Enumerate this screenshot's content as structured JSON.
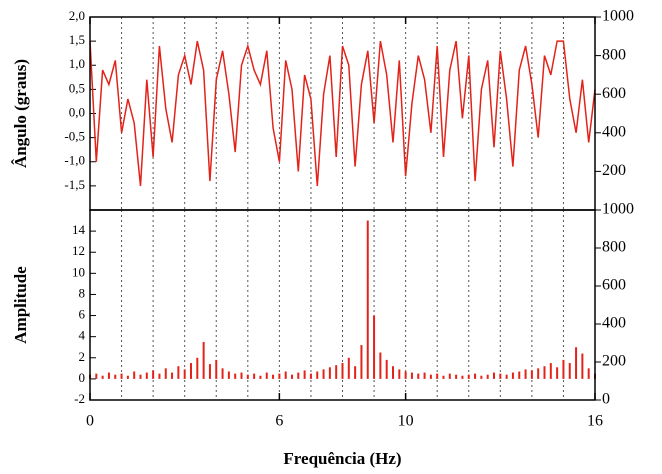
{
  "chart_data": [
    {
      "type": "line",
      "ylabel": "Ângulo (graus)",
      "color": "#e2231a",
      "x": [
        0,
        0.2,
        0.4,
        0.6,
        0.8,
        1,
        1.2,
        1.4,
        1.6,
        1.8,
        2,
        2.2,
        2.4,
        2.6,
        2.8,
        3,
        3.2,
        3.4,
        3.6,
        3.8,
        4,
        4.2,
        4.4,
        4.6,
        4.8,
        5,
        5.2,
        5.4,
        5.6,
        5.8,
        6,
        6.2,
        6.4,
        6.6,
        6.8,
        7,
        7.2,
        7.4,
        7.6,
        7.8,
        8,
        8.2,
        8.4,
        8.6,
        8.8,
        9,
        9.2,
        9.4,
        9.6,
        9.8,
        10,
        10.2,
        10.4,
        10.6,
        10.8,
        11,
        11.2,
        11.4,
        11.6,
        11.8,
        12,
        12.2,
        12.4,
        12.6,
        12.8,
        13,
        13.2,
        13.4,
        13.6,
        13.8,
        14,
        14.2,
        14.4,
        14.6,
        14.8,
        15,
        15.2,
        15.4,
        15.6,
        15.8,
        16
      ],
      "values": [
        1.5,
        -1.0,
        0.9,
        0.6,
        1.1,
        -0.4,
        0.3,
        -0.2,
        -1.5,
        0.7,
        -0.9,
        1.4,
        0.1,
        -0.6,
        0.8,
        1.2,
        0.6,
        1.5,
        0.9,
        -1.4,
        0.7,
        1.3,
        0.4,
        -0.8,
        1.0,
        1.4,
        0.9,
        0.6,
        1.3,
        -0.3,
        -1.0,
        1.1,
        0.5,
        -1.2,
        0.8,
        0.3,
        -1.5,
        0.4,
        1.2,
        -0.9,
        1.4,
        1.0,
        -1.1,
        0.6,
        1.3,
        -0.2,
        1.5,
        0.8,
        -0.6,
        1.1,
        -1.3,
        0.2,
        1.2,
        0.7,
        -0.4,
        1.4,
        -0.9,
        0.9,
        1.5,
        -0.1,
        1.2,
        -1.4,
        0.5,
        1.1,
        -0.7,
        1.3,
        0.3,
        -1.1,
        0.9,
        1.4,
        0.6,
        -0.5,
        1.2,
        0.8,
        1.5,
        1.5,
        0.3,
        -0.4,
        0.7,
        -0.6,
        0.5
      ],
      "xlim": [
        0,
        16
      ],
      "xticks": [
        0,
        6,
        10,
        16
      ],
      "xminorticks": [
        1,
        2,
        3,
        4,
        5,
        7,
        8,
        9,
        11,
        12,
        13,
        14,
        15
      ],
      "grid": true,
      "ylim": [
        -2,
        2
      ],
      "yticks": [
        {
          "value": -1.5,
          "label": "-1,5"
        },
        {
          "value": -1,
          "label": "-1,0"
        },
        {
          "value": -0.5,
          "label": "-0,5"
        },
        {
          "value": 0,
          "label": "0,0"
        },
        {
          "value": 0.5,
          "label": "0,5"
        },
        {
          "value": 1,
          "label": "1,0"
        },
        {
          "value": 1.5,
          "label": "1,5"
        },
        {
          "value": 2,
          "label": "2,0"
        }
      ],
      "y2lim": [
        0,
        1000
      ],
      "y2ticks": [
        200,
        400,
        600,
        800,
        1000
      ]
    },
    {
      "type": "bar",
      "ylabel": "Amplitude",
      "xlabel": "Frequência (Hz)",
      "color": "#e2231a",
      "x": [
        0,
        0.2,
        0.4,
        0.6,
        0.8,
        1,
        1.2,
        1.4,
        1.6,
        1.8,
        2,
        2.2,
        2.4,
        2.6,
        2.8,
        3,
        3.2,
        3.4,
        3.6,
        3.8,
        4,
        4.2,
        4.4,
        4.6,
        4.8,
        5,
        5.2,
        5.4,
        5.6,
        5.8,
        6,
        6.2,
        6.4,
        6.6,
        6.8,
        7,
        7.2,
        7.4,
        7.6,
        7.8,
        8,
        8.2,
        8.4,
        8.6,
        8.8,
        9,
        9.2,
        9.4,
        9.6,
        9.8,
        10,
        10.2,
        10.4,
        10.6,
        10.8,
        11,
        11.2,
        11.4,
        11.6,
        11.8,
        12,
        12.2,
        12.4,
        12.6,
        12.8,
        13,
        13.2,
        13.4,
        13.6,
        13.8,
        14,
        14.2,
        14.4,
        14.6,
        14.8,
        15,
        15.2,
        15.4,
        15.6,
        15.8,
        16
      ],
      "values": [
        0.4,
        0.5,
        0.3,
        0.6,
        0.4,
        0.5,
        0.3,
        0.7,
        0.4,
        0.6,
        0.8,
        0.5,
        1.0,
        0.6,
        1.2,
        0.9,
        1.5,
        2.0,
        3.5,
        1.4,
        1.8,
        1.0,
        0.7,
        0.5,
        0.6,
        0.4,
        0.5,
        0.3,
        0.6,
        0.4,
        0.5,
        0.7,
        0.4,
        0.6,
        0.8,
        0.5,
        0.7,
        0.9,
        1.1,
        1.3,
        1.5,
        2.0,
        1.2,
        3.2,
        15.0,
        6.0,
        2.5,
        1.8,
        1.2,
        0.9,
        0.7,
        0.6,
        0.5,
        0.6,
        0.4,
        0.5,
        0.3,
        0.5,
        0.4,
        0.3,
        0.4,
        0.5,
        0.3,
        0.4,
        0.6,
        0.5,
        0.4,
        0.6,
        0.7,
        0.9,
        0.8,
        1.0,
        1.2,
        1.5,
        1.1,
        1.8,
        1.5,
        3.0,
        2.4,
        1.0,
        0.5
      ],
      "xlim": [
        0,
        16
      ],
      "xticks": [
        0,
        6,
        10,
        16
      ],
      "xminorticks": [
        1,
        2,
        3,
        4,
        5,
        7,
        8,
        9,
        11,
        12,
        13,
        14,
        15
      ],
      "grid": true,
      "ylim": [
        -2,
        16
      ],
      "yticks": [
        -2,
        0,
        2,
        4,
        6,
        8,
        10,
        12,
        14
      ],
      "y2lim": [
        0,
        1000
      ],
      "y2ticks": [
        0,
        200,
        400,
        600,
        800,
        1000
      ]
    }
  ]
}
